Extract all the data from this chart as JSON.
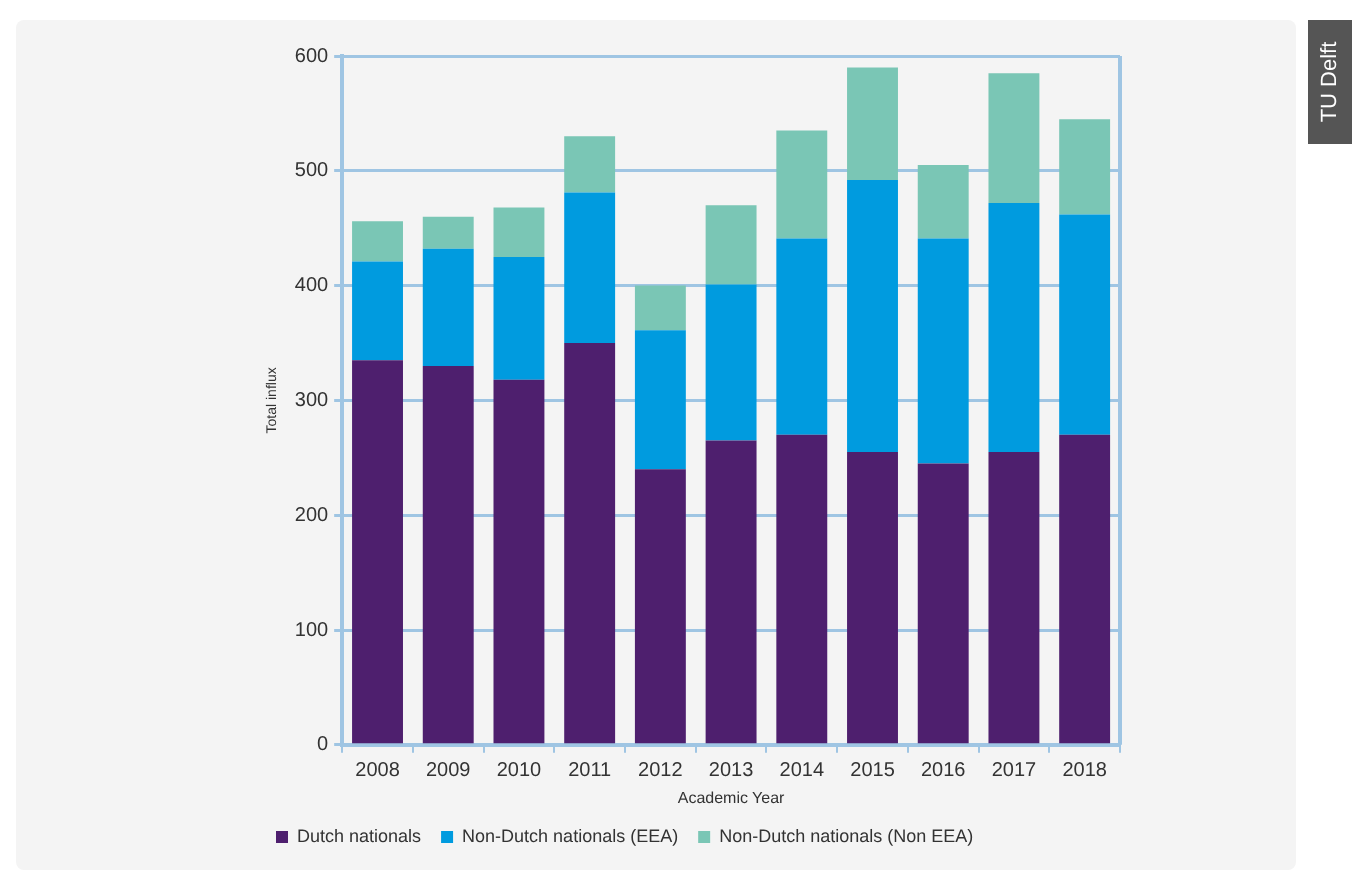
{
  "chart_data": {
    "type": "bar",
    "stacked": true,
    "xlabel": "Academic Year",
    "ylabel": "Total influx",
    "categories": [
      "2008",
      "2009",
      "2010",
      "2011",
      "2012",
      "2013",
      "2014",
      "2015",
      "2016",
      "2017",
      "2018"
    ],
    "series": [
      {
        "name": "Dutch nationals",
        "color": "#4e1f6e",
        "values": [
          335,
          330,
          318,
          350,
          240,
          265,
          270,
          255,
          245,
          255,
          270
        ]
      },
      {
        "name": "Non-Dutch nationals (EEA)",
        "color": "#009bdf",
        "values": [
          86,
          102,
          107,
          131,
          121,
          136,
          171,
          237,
          196,
          217,
          192
        ]
      },
      {
        "name": "Non-Dutch nationals (Non EEA)",
        "color": "#7ac6b5",
        "values": [
          35,
          28,
          43,
          49,
          39,
          69,
          94,
          98,
          64,
          113,
          83
        ]
      }
    ],
    "ylim": [
      0,
      600
    ],
    "yticks": [
      0,
      100,
      200,
      300,
      400,
      500,
      600
    ],
    "grid": "y",
    "legend": "bottom left",
    "annotations": [
      "TU Delft"
    ]
  }
}
